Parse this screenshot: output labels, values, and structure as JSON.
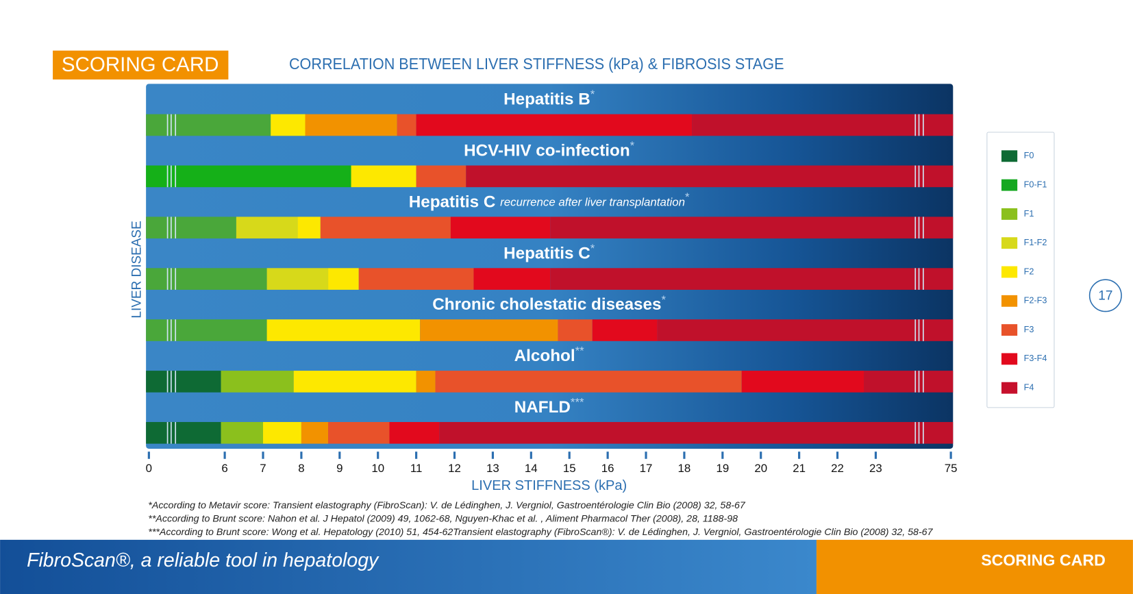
{
  "header": {
    "badge": "SCORING CARD",
    "title": "CORRELATION BETWEEN LIVER STIFFNESS (kPa) & FIBROSIS STAGE"
  },
  "chart_data": {
    "type": "range-bar",
    "y_label": "LIVER DISEASE",
    "x_label": "LIVER STIFFNESS (kPa)",
    "xlim": [
      0,
      75
    ],
    "xticks": [
      0,
      6,
      7,
      8,
      9,
      10,
      11,
      12,
      13,
      14,
      15,
      16,
      17,
      18,
      19,
      20,
      21,
      22,
      23,
      75
    ],
    "rows": [
      {
        "label": "Hepatitis B",
        "marker": "*",
        "segments": [
          {
            "color": "#4aa73a",
            "range": [
              0,
              7.2
            ]
          },
          {
            "color": "#fde800",
            "range": [
              7.2,
              8.1
            ]
          },
          {
            "color": "#f29200",
            "range": [
              8.1,
              10.5
            ]
          },
          {
            "color": "#e8522a",
            "range": [
              10.5,
              11
            ]
          },
          {
            "color": "#e2091d",
            "range": [
              11,
              18.2
            ]
          },
          {
            "color": "#c0112b",
            "range": [
              18.2,
              75
            ]
          }
        ]
      },
      {
        "label": "HCV-HIV co-infection",
        "marker": "*",
        "segments": [
          {
            "color": "#15b018",
            "range": [
              0,
              9.3
            ]
          },
          {
            "color": "#fde800",
            "range": [
              9.3,
              11
            ]
          },
          {
            "color": "#e8522a",
            "range": [
              11,
              12.3
            ]
          },
          {
            "color": "#c0112b",
            "range": [
              12.3,
              75
            ]
          }
        ]
      },
      {
        "label": "Hepatitis C",
        "note": "recurrence after liver transplantation",
        "marker": "*",
        "segments": [
          {
            "color": "#4aa73a",
            "range": [
              0,
              6.3
            ]
          },
          {
            "color": "#d7d91a",
            "range": [
              6.3,
              7.9
            ]
          },
          {
            "color": "#fde800",
            "range": [
              7.9,
              8.5
            ]
          },
          {
            "color": "#e8522a",
            "range": [
              8.5,
              11.9
            ]
          },
          {
            "color": "#e2091d",
            "range": [
              11.9,
              14.5
            ]
          },
          {
            "color": "#c0112b",
            "range": [
              14.5,
              75
            ]
          }
        ]
      },
      {
        "label": "Hepatitis C",
        "marker": "*",
        "segments": [
          {
            "color": "#4aa73a",
            "range": [
              0,
              7.1
            ]
          },
          {
            "color": "#d7d91a",
            "range": [
              7.1,
              8.7
            ]
          },
          {
            "color": "#fde800",
            "range": [
              8.7,
              9.5
            ]
          },
          {
            "color": "#e8522a",
            "range": [
              9.5,
              12.5
            ]
          },
          {
            "color": "#e2091d",
            "range": [
              12.5,
              14.5
            ]
          },
          {
            "color": "#c0112b",
            "range": [
              14.5,
              75
            ]
          }
        ]
      },
      {
        "label": "Chronic cholestatic diseases",
        "marker": "*",
        "segments": [
          {
            "color": "#4aa73a",
            "range": [
              0,
              7.1
            ]
          },
          {
            "color": "#fde800",
            "range": [
              7.1,
              11.1
            ]
          },
          {
            "color": "#f29200",
            "range": [
              11.1,
              14.7
            ]
          },
          {
            "color": "#e8522a",
            "range": [
              14.7,
              15.6
            ]
          },
          {
            "color": "#e2091d",
            "range": [
              15.6,
              17.3
            ]
          },
          {
            "color": "#c0112b",
            "range": [
              17.3,
              75
            ]
          }
        ]
      },
      {
        "label": "Alcohol",
        "marker": "**",
        "segments": [
          {
            "color": "#0e6a34",
            "range": [
              0,
              5.7
            ]
          },
          {
            "color": "#8bc01d",
            "range": [
              5.7,
              7.8
            ]
          },
          {
            "color": "#fde800",
            "range": [
              7.8,
              11
            ]
          },
          {
            "color": "#f29200",
            "range": [
              11,
              11.5
            ]
          },
          {
            "color": "#e8522a",
            "range": [
              11.5,
              19.5
            ]
          },
          {
            "color": "#e2091d",
            "range": [
              19.5,
              22.7
            ]
          },
          {
            "color": "#c0112b",
            "range": [
              22.7,
              75
            ]
          }
        ]
      },
      {
        "label": "NAFLD",
        "marker": "***",
        "segments": [
          {
            "color": "#0e6a34",
            "range": [
              0,
              5.7
            ]
          },
          {
            "color": "#8bc01d",
            "range": [
              5.7,
              7
            ]
          },
          {
            "color": "#fde800",
            "range": [
              7,
              8
            ]
          },
          {
            "color": "#f29200",
            "range": [
              8,
              8.7
            ]
          },
          {
            "color": "#e8522a",
            "range": [
              8.7,
              10.3
            ]
          },
          {
            "color": "#e2091d",
            "range": [
              10.3,
              11.6
            ]
          },
          {
            "color": "#c0112b",
            "range": [
              11.6,
              75
            ]
          }
        ]
      }
    ],
    "legend": [
      {
        "name": "F0",
        "color": "#0e6a34"
      },
      {
        "name": "F0-F1",
        "color": "#15a820"
      },
      {
        "name": "F1",
        "color": "#8bc01d"
      },
      {
        "name": "F1-F2",
        "color": "#d7d91a"
      },
      {
        "name": "F2",
        "color": "#fde800"
      },
      {
        "name": "F2-F3",
        "color": "#f29200"
      },
      {
        "name": "F3",
        "color": "#e8522a"
      },
      {
        "name": "F3-F4",
        "color": "#e2091d"
      },
      {
        "name": "F4",
        "color": "#c6102c"
      }
    ]
  },
  "footnotes": [
    "*According to Metavir score: Transient elastography (FibroScan): V. de Lédinghen, J. Vergniol, Gastroentérologie Clin Bio (2008) 32, 58-67",
    "**According to Brunt score: Nahon et al. J Hepatol (2009) 49, 1062-68, Nguyen-Khac et al. , Aliment Pharmacol Ther (2008), 28, 1188-98",
    "***According to Brunt score: Wong et al. Hepatology (2010) 51, 454-62Transient elastography (FibroScan®): V. de Lédinghen, J. Vergniol, Gastroentérologie Clin Bio (2008) 32, 58-67"
  ],
  "page_number": 17,
  "footer": {
    "tagline": "FibroScan®, a reliable tool in hepatology",
    "section": "SCORING CARD"
  }
}
